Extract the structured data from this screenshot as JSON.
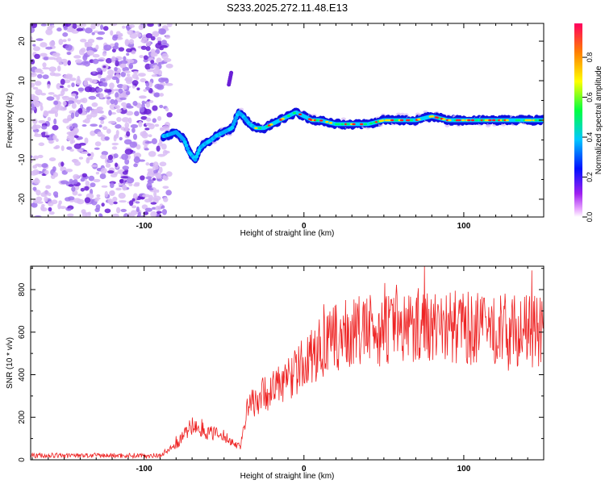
{
  "title": "S233.2025.272.11.48.E13",
  "colors": {
    "line": "#ee2222",
    "axis": "#000000",
    "scatter_light": "#d9bdf5",
    "scatter_mid": "#a277ee",
    "scatter_dark": "#6a1fd6"
  },
  "chart_data": [
    {
      "type": "heatmap",
      "name": "spectrogram",
      "xlabel": "Height of straight line (km)",
      "ylabel": "Frequency (Hz)",
      "xlim": [
        -171,
        150
      ],
      "ylim": [
        -24.5,
        24.5
      ],
      "xticks": [
        -100,
        0,
        100
      ],
      "xtick_labels": [
        "-100",
        "0",
        "100"
      ],
      "yticks": [
        -20,
        -10,
        0,
        10,
        20
      ],
      "ytick_labels": [
        "-20",
        "-10",
        "0",
        "10",
        "20"
      ],
      "noise_region_x": [
        -171,
        -87
      ],
      "ridge": {
        "x": [
          -87,
          -80,
          -75,
          -72,
          -68,
          -65,
          -62,
          -58,
          -55,
          -50,
          -45,
          -41,
          -38,
          -34,
          -30,
          -25,
          -20,
          -15,
          -10,
          -5,
          0,
          5,
          10,
          20,
          30,
          40,
          50,
          60,
          70,
          80,
          90,
          100,
          110,
          120,
          130,
          140,
          150
        ],
        "y": [
          -4,
          -3,
          -5,
          -8,
          -10,
          -7,
          -6,
          -5,
          -4,
          -3,
          -2,
          2,
          1,
          -1,
          -2,
          -2,
          -1,
          0,
          1,
          2,
          1,
          0,
          0,
          -1,
          -1,
          -1,
          0,
          0,
          0,
          1,
          0,
          0,
          0,
          0,
          0,
          0,
          0
        ]
      },
      "spur": {
        "x": -47,
        "y": [
          9,
          12
        ]
      },
      "colorbar": {
        "label": "Normalized spectral amplitude",
        "range": [
          0,
          0.97
        ],
        "ticks": [
          0.0,
          0.2,
          0.4,
          0.6,
          0.8
        ],
        "tick_labels": [
          "0.0",
          "0.2",
          "0.4",
          "0.6",
          "0.8"
        ]
      }
    },
    {
      "type": "line",
      "name": "snr",
      "xlabel": "Height of straight line (km)",
      "ylabel": "SNR (10 * v/v)",
      "xlim": [
        -171,
        150
      ],
      "ylim": [
        0,
        910
      ],
      "xticks": [
        -100,
        0,
        100
      ],
      "xtick_labels": [
        "-100",
        "0",
        "100"
      ],
      "yticks": [
        0,
        200,
        400,
        600,
        800
      ],
      "ytick_labels": [
        "0",
        "200",
        "400",
        "600",
        "800"
      ],
      "trend": {
        "x": [
          -171,
          -90,
          -80,
          -70,
          -60,
          -50,
          -40,
          -35,
          -30,
          -20,
          -10,
          0,
          10,
          20,
          30,
          50,
          70,
          100,
          130,
          150
        ],
        "y": [
          20,
          20,
          70,
          160,
          130,
          110,
          60,
          250,
          290,
          330,
          380,
          450,
          520,
          570,
          600,
          610,
          640,
          620,
          610,
          600
        ]
      }
    }
  ]
}
